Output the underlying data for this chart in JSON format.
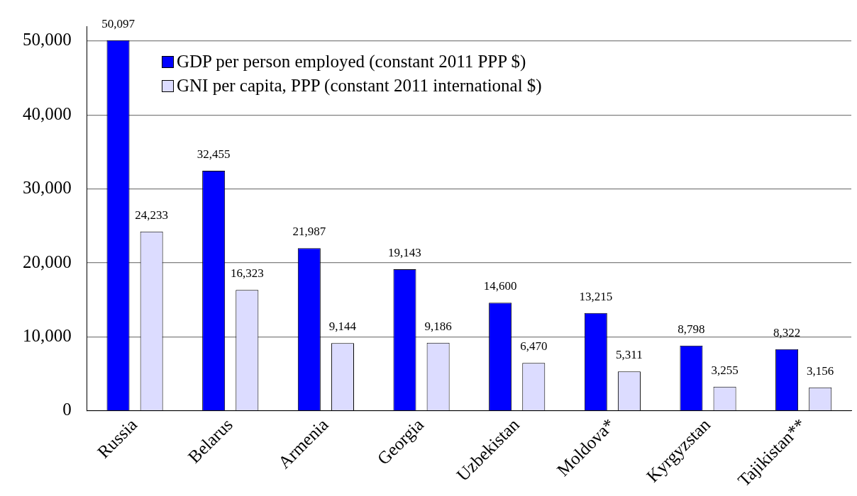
{
  "chart_data": {
    "type": "bar",
    "categories": [
      "Russia",
      "Belarus",
      "Armenia",
      "Georgia",
      "Uzbekistan",
      "Moldova*",
      "Kyrgyzstan",
      "Tajikistan**"
    ],
    "series": [
      {
        "name": "GDP per person employed (constant 2011 PPP $)",
        "color": "#0000ff",
        "values": [
          50097,
          32455,
          21987,
          19143,
          14600,
          13215,
          8798,
          8322
        ],
        "value_labels": [
          "50,097",
          "32,455",
          "21,987",
          "19,143",
          "14,600",
          "13,215",
          "8,798",
          "8,322"
        ]
      },
      {
        "name": "GNI per capita, PPP (constant 2011 international $)",
        "color": "#dcdcff",
        "values": [
          24233,
          16323,
          9144,
          9186,
          6470,
          5311,
          3255,
          3156
        ],
        "value_labels": [
          "24,233",
          "16,323",
          "9,144",
          "9,186",
          "6,470",
          "5,311",
          "3,255",
          "3,156"
        ]
      }
    ],
    "ylim": [
      0,
      52000
    ],
    "yticks": [
      {
        "value": 0,
        "label": "0"
      },
      {
        "value": 10000,
        "label": "10,000"
      },
      {
        "value": 20000,
        "label": "20,000"
      },
      {
        "value": 30000,
        "label": "30,000"
      },
      {
        "value": 40000,
        "label": "40,000"
      },
      {
        "value": 50000,
        "label": "50,000"
      }
    ],
    "grid": "y",
    "legend": "top"
  }
}
